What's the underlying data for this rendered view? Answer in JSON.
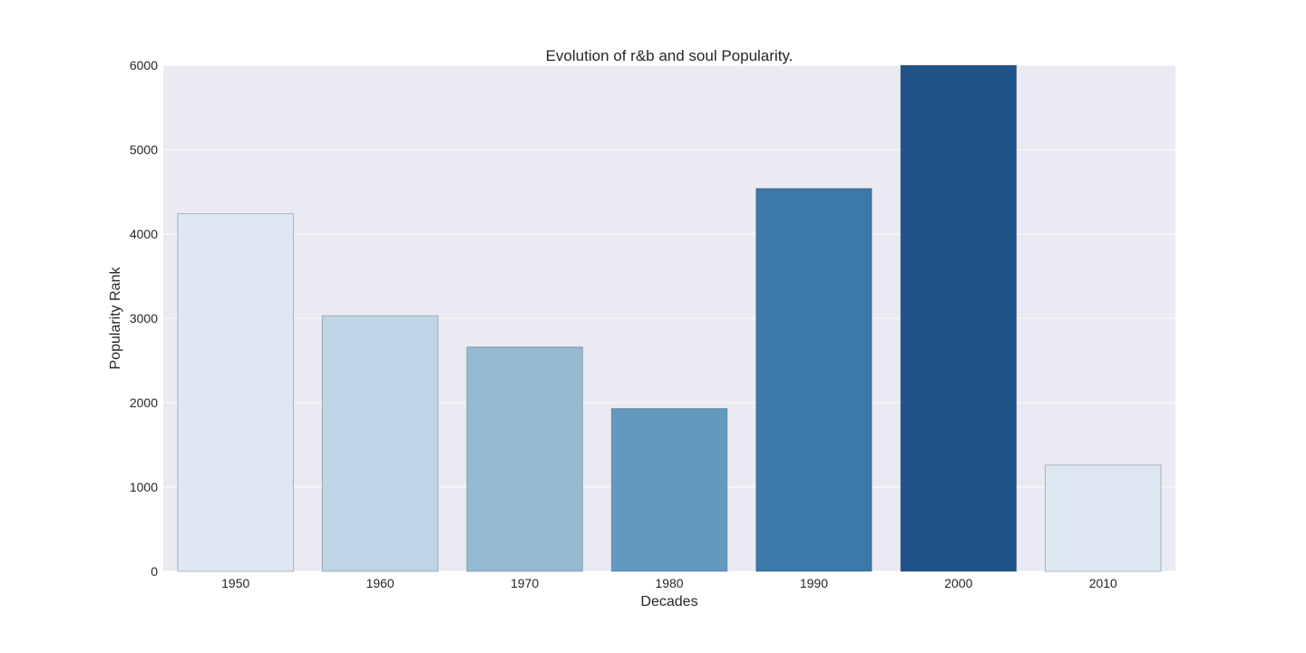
{
  "chart_data": {
    "type": "bar",
    "title": "Evolution of r&b and soul Popularity.",
    "xlabel": "Decades",
    "ylabel": "Popularity Rank",
    "categories": [
      "1950",
      "1960",
      "1970",
      "1980",
      "1990",
      "2000",
      "2010"
    ],
    "values": [
      4240,
      3030,
      2660,
      1930,
      4540,
      6000,
      1260
    ],
    "ylim": [
      0,
      6000
    ],
    "yticks": [
      "0",
      "1000",
      "2000",
      "3000",
      "4000",
      "5000",
      "6000"
    ],
    "grid": true,
    "legend": "none",
    "colors": {
      "background": "#eaeaf2",
      "grid": "#ffffff",
      "bars": [
        "#dee8f3",
        "#bfd5e6",
        "#95bbd3",
        "#6399be",
        "#3c78a8",
        "#205289",
        "#dee8f3"
      ]
    }
  }
}
